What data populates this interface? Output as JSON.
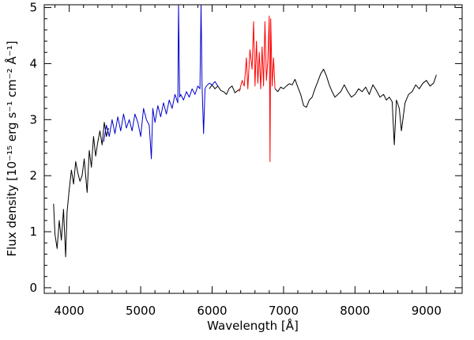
{
  "chart_data": {
    "type": "line",
    "title": "",
    "xlabel": "Wavelength [Å]",
    "ylabel": "Flux density [10⁻¹⁵ erg s⁻¹ cm⁻² Å⁻¹]",
    "xlim": [
      3650,
      9500
    ],
    "ylim": [
      -0.1,
      5.05
    ],
    "xticks": [
      4000,
      5000,
      6000,
      7000,
      8000,
      9000
    ],
    "xtick_labels": [
      "4000",
      "5000",
      "6000",
      "7000",
      "8000",
      "9000"
    ],
    "yticks": [
      0,
      1,
      2,
      3,
      4,
      5
    ],
    "ytick_labels": [
      "0",
      "1",
      "2",
      "3",
      "4",
      "5"
    ],
    "grid": false,
    "series": [
      {
        "color": "#000000",
        "x": [
          3780,
          3800,
          3830,
          3860,
          3890,
          3920,
          3950,
          3970,
          4000,
          4030,
          4060,
          4090,
          4120,
          4150,
          4180,
          4210,
          4250,
          4280,
          4310,
          4340,
          4370,
          4400,
          4430,
          4460,
          4490,
          4520,
          4550,
          null,
          5960,
          6000,
          6040,
          6080,
          6120,
          6160,
          6200,
          6240,
          6280,
          6320,
          6360,
          6400,
          null,
          6880,
          6920,
          6960,
          7000,
          7040,
          7080,
          7120,
          7160,
          7200,
          7240,
          7280,
          7320,
          7360,
          7400,
          7440,
          7480,
          7520,
          7560,
          7600,
          7640,
          7680,
          7720,
          7760,
          7800,
          7850,
          7900,
          7950,
          8000,
          8050,
          8100,
          8150,
          8200,
          8250,
          8300,
          8350,
          8400,
          8440,
          8480,
          8520,
          8550,
          8580,
          8620,
          8650,
          8700,
          8750,
          8800,
          8850,
          8900,
          8950,
          9000,
          9050,
          9100,
          9140
        ],
        "y": [
          1.5,
          0.95,
          0.7,
          1.2,
          0.85,
          1.4,
          0.55,
          1.35,
          1.75,
          2.1,
          1.85,
          2.25,
          2.05,
          1.9,
          2.0,
          2.3,
          1.7,
          2.45,
          2.15,
          2.7,
          2.35,
          2.6,
          2.8,
          2.55,
          2.95,
          2.7,
          2.85,
          null,
          3.55,
          3.62,
          3.55,
          3.6,
          3.52,
          3.5,
          3.45,
          3.56,
          3.6,
          3.48,
          3.52,
          3.55,
          null,
          3.55,
          3.5,
          3.58,
          3.55,
          3.6,
          3.64,
          3.62,
          3.72,
          3.58,
          3.45,
          3.25,
          3.22,
          3.35,
          3.4,
          3.55,
          3.68,
          3.82,
          3.9,
          3.78,
          3.62,
          3.5,
          3.4,
          3.45,
          3.5,
          3.62,
          3.5,
          3.4,
          3.45,
          3.55,
          3.5,
          3.58,
          3.45,
          3.62,
          3.52,
          3.4,
          3.45,
          3.35,
          3.4,
          3.32,
          2.55,
          3.35,
          3.2,
          2.8,
          3.3,
          3.45,
          3.5,
          3.62,
          3.55,
          3.65,
          3.7,
          3.6,
          3.65,
          3.8
        ]
      },
      {
        "color": "#0000cc",
        "x": [
          4480,
          4520,
          4560,
          4600,
          4640,
          4680,
          4720,
          4760,
          4800,
          4840,
          4880,
          4920,
          4960,
          5000,
          5040,
          5080,
          5120,
          5150,
          5170,
          5200,
          5240,
          5280,
          5320,
          5360,
          5400,
          5440,
          5480,
          5520,
          5530,
          5545,
          5560,
          5600,
          5640,
          5680,
          5720,
          5760,
          5800,
          5830,
          5845,
          5860,
          5880,
          5900,
          5920,
          5960,
          6000,
          6040,
          6080
        ],
        "y": [
          2.6,
          2.9,
          2.7,
          3.0,
          2.75,
          3.05,
          2.8,
          3.1,
          2.85,
          3.0,
          2.8,
          3.1,
          2.95,
          2.7,
          3.2,
          3.0,
          2.9,
          2.3,
          3.2,
          2.95,
          3.25,
          3.05,
          3.3,
          3.1,
          3.35,
          3.2,
          3.45,
          3.3,
          5.05,
          3.4,
          3.45,
          3.35,
          3.5,
          3.4,
          3.55,
          3.45,
          3.6,
          3.55,
          5.05,
          3.6,
          2.75,
          3.55,
          3.6,
          3.65,
          3.62,
          3.68,
          3.6
        ]
      },
      {
        "color": "#ff0000",
        "x": [
          6380,
          6420,
          6450,
          6480,
          6500,
          6530,
          6560,
          6580,
          6600,
          6620,
          6640,
          6660,
          6680,
          6700,
          6720,
          6740,
          6760,
          6780,
          6800,
          6810,
          6820,
          6840,
          6860,
          6880
        ],
        "y": [
          3.5,
          3.7,
          3.6,
          4.1,
          3.55,
          4.25,
          3.9,
          4.75,
          3.6,
          4.4,
          3.65,
          4.2,
          3.55,
          4.3,
          3.6,
          4.75,
          3.7,
          4.05,
          4.85,
          2.25,
          4.8,
          3.6,
          4.1,
          3.55
        ]
      }
    ]
  }
}
